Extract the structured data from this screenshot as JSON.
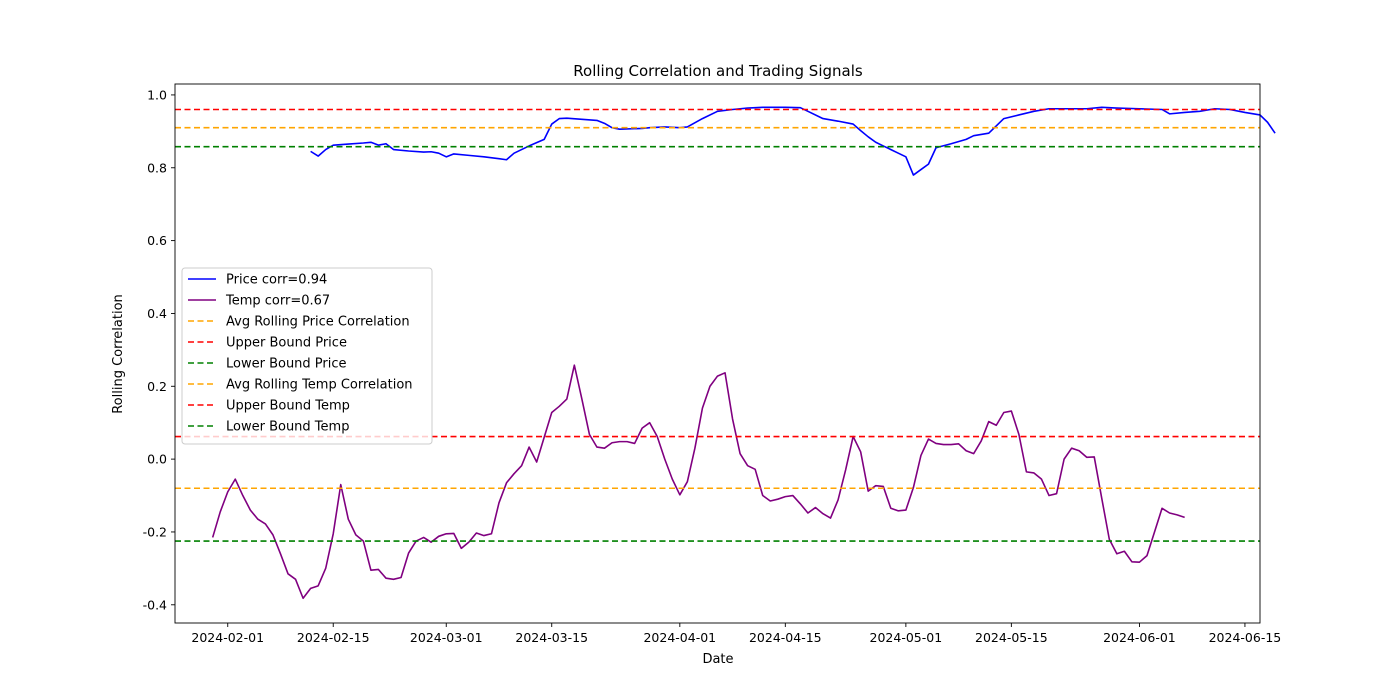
{
  "chart_data": {
    "type": "line",
    "title": "Rolling Correlation and Trading Signals",
    "xlabel": "Date",
    "ylabel": "Rolling Correlation",
    "xlim": [
      "2024-01-25",
      "2024-06-17"
    ],
    "ylim": [
      -0.45,
      1.03
    ],
    "x_ticks": [
      "2024-02-01",
      "2024-02-15",
      "2024-03-01",
      "2024-03-15",
      "2024-04-01",
      "2024-04-15",
      "2024-05-01",
      "2024-05-15",
      "2024-06-01",
      "2024-06-15"
    ],
    "y_ticks": [
      "-0.4",
      "-0.2",
      "0.0",
      "0.2",
      "0.4",
      "0.6",
      "0.8",
      "1.0"
    ],
    "grid": false,
    "legend_position": "center-left",
    "series": [
      {
        "name": "Price corr=0.94",
        "color": "#0000ff",
        "style": "solid",
        "points": [
          [
            "2024-02-12",
            0.845
          ],
          [
            "2024-02-13",
            0.832
          ],
          [
            "2024-02-14",
            0.85
          ],
          [
            "2024-02-15",
            0.862
          ],
          [
            "2024-02-17",
            0.865
          ],
          [
            "2024-02-19",
            0.868
          ],
          [
            "2024-02-20",
            0.87
          ],
          [
            "2024-02-21",
            0.862
          ],
          [
            "2024-02-22",
            0.866
          ],
          [
            "2024-02-23",
            0.85
          ],
          [
            "2024-02-25",
            0.846
          ],
          [
            "2024-02-27",
            0.843
          ],
          [
            "2024-02-28",
            0.844
          ],
          [
            "2024-02-29",
            0.84
          ],
          [
            "2024-03-01",
            0.83
          ],
          [
            "2024-03-02",
            0.838
          ],
          [
            "2024-03-04",
            0.834
          ],
          [
            "2024-03-06",
            0.83
          ],
          [
            "2024-03-08",
            0.825
          ],
          [
            "2024-03-09",
            0.822
          ],
          [
            "2024-03-10",
            0.84
          ],
          [
            "2024-03-12",
            0.86
          ],
          [
            "2024-03-14",
            0.878
          ],
          [
            "2024-03-15",
            0.92
          ],
          [
            "2024-03-16",
            0.935
          ],
          [
            "2024-03-17",
            0.936
          ],
          [
            "2024-03-21",
            0.93
          ],
          [
            "2024-03-22",
            0.922
          ],
          [
            "2024-03-23",
            0.91
          ],
          [
            "2024-03-24",
            0.906
          ],
          [
            "2024-03-27",
            0.908
          ],
          [
            "2024-03-28",
            0.91
          ],
          [
            "2024-03-30",
            0.912
          ],
          [
            "2024-04-01",
            0.91
          ],
          [
            "2024-04-02",
            0.912
          ],
          [
            "2024-04-04",
            0.935
          ],
          [
            "2024-04-06",
            0.955
          ],
          [
            "2024-04-08",
            0.96
          ],
          [
            "2024-04-10",
            0.964
          ],
          [
            "2024-04-12",
            0.966
          ],
          [
            "2024-04-15",
            0.966
          ],
          [
            "2024-04-17",
            0.965
          ],
          [
            "2024-04-18",
            0.955
          ],
          [
            "2024-04-20",
            0.935
          ],
          [
            "2024-04-22",
            0.928
          ],
          [
            "2024-04-24",
            0.92
          ],
          [
            "2024-04-25",
            0.902
          ],
          [
            "2024-04-26",
            0.885
          ],
          [
            "2024-04-27",
            0.87
          ],
          [
            "2024-04-28",
            0.86
          ],
          [
            "2024-04-30",
            0.84
          ],
          [
            "2024-05-01",
            0.83
          ],
          [
            "2024-05-02",
            0.78
          ],
          [
            "2024-05-03",
            0.795
          ],
          [
            "2024-05-04",
            0.81
          ],
          [
            "2024-05-05",
            0.855
          ],
          [
            "2024-05-07",
            0.866
          ],
          [
            "2024-05-09",
            0.878
          ],
          [
            "2024-05-10",
            0.888
          ],
          [
            "2024-05-12",
            0.895
          ],
          [
            "2024-05-14",
            0.935
          ],
          [
            "2024-05-16",
            0.945
          ],
          [
            "2024-05-18",
            0.955
          ],
          [
            "2024-05-20",
            0.962
          ],
          [
            "2024-05-23",
            0.962
          ],
          [
            "2024-05-25",
            0.962
          ],
          [
            "2024-05-27",
            0.966
          ],
          [
            "2024-05-29",
            0.964
          ],
          [
            "2024-06-01",
            0.962
          ],
          [
            "2024-06-04",
            0.96
          ],
          [
            "2024-06-05",
            0.948
          ],
          [
            "2024-06-07",
            0.952
          ],
          [
            "2024-06-09",
            0.955
          ],
          [
            "2024-06-11",
            0.962
          ],
          [
            "2024-06-13",
            0.96
          ],
          [
            "2024-06-15",
            0.952
          ],
          [
            "2024-06-17",
            0.945
          ],
          [
            "2024-06-18",
            0.925
          ],
          [
            "2024-06-19",
            0.895
          ]
        ]
      },
      {
        "name": "Temp corr=0.67",
        "color": "#800080",
        "style": "solid",
        "points": [
          [
            "2024-01-30",
            -0.215
          ],
          [
            "2024-01-31",
            -0.145
          ],
          [
            "2024-02-01",
            -0.09
          ],
          [
            "2024-02-02",
            -0.055
          ],
          [
            "2024-02-03",
            -0.1
          ],
          [
            "2024-02-04",
            -0.14
          ],
          [
            "2024-02-05",
            -0.165
          ],
          [
            "2024-02-06",
            -0.178
          ],
          [
            "2024-02-07",
            -0.208
          ],
          [
            "2024-02-08",
            -0.26
          ],
          [
            "2024-02-09",
            -0.315
          ],
          [
            "2024-02-10",
            -0.33
          ],
          [
            "2024-02-11",
            -0.382
          ],
          [
            "2024-02-12",
            -0.355
          ],
          [
            "2024-02-13",
            -0.348
          ],
          [
            "2024-02-14",
            -0.3
          ],
          [
            "2024-02-15",
            -0.205
          ],
          [
            "2024-02-16",
            -0.07
          ],
          [
            "2024-02-17",
            -0.165
          ],
          [
            "2024-02-18",
            -0.208
          ],
          [
            "2024-02-19",
            -0.225
          ],
          [
            "2024-02-20",
            -0.305
          ],
          [
            "2024-02-21",
            -0.303
          ],
          [
            "2024-02-22",
            -0.327
          ],
          [
            "2024-02-23",
            -0.33
          ],
          [
            "2024-02-24",
            -0.325
          ],
          [
            "2024-02-25",
            -0.258
          ],
          [
            "2024-02-26",
            -0.225
          ],
          [
            "2024-02-27",
            -0.215
          ],
          [
            "2024-02-28",
            -0.228
          ],
          [
            "2024-02-29",
            -0.212
          ],
          [
            "2024-03-01",
            -0.205
          ],
          [
            "2024-03-02",
            -0.204
          ],
          [
            "2024-03-03",
            -0.245
          ],
          [
            "2024-03-04",
            -0.228
          ],
          [
            "2024-03-05",
            -0.203
          ],
          [
            "2024-03-06",
            -0.21
          ],
          [
            "2024-03-07",
            -0.205
          ],
          [
            "2024-03-08",
            -0.12
          ],
          [
            "2024-03-09",
            -0.065
          ],
          [
            "2024-03-10",
            -0.04
          ],
          [
            "2024-03-11",
            -0.018
          ],
          [
            "2024-03-12",
            0.033
          ],
          [
            "2024-03-13",
            -0.008
          ],
          [
            "2024-03-14",
            0.06
          ],
          [
            "2024-03-15",
            0.128
          ],
          [
            "2024-03-16",
            0.145
          ],
          [
            "2024-03-17",
            0.165
          ],
          [
            "2024-03-18",
            0.258
          ],
          [
            "2024-03-19",
            0.165
          ],
          [
            "2024-03-20",
            0.068
          ],
          [
            "2024-03-21",
            0.033
          ],
          [
            "2024-03-22",
            0.03
          ],
          [
            "2024-03-23",
            0.045
          ],
          [
            "2024-03-24",
            0.048
          ],
          [
            "2024-03-25",
            0.048
          ],
          [
            "2024-03-26",
            0.043
          ],
          [
            "2024-03-27",
            0.085
          ],
          [
            "2024-03-28",
            0.1
          ],
          [
            "2024-03-29",
            0.062
          ],
          [
            "2024-03-30",
            0.0
          ],
          [
            "2024-03-31",
            -0.055
          ],
          [
            "2024-04-01",
            -0.098
          ],
          [
            "2024-04-02",
            -0.062
          ],
          [
            "2024-04-03",
            0.03
          ],
          [
            "2024-04-04",
            0.14
          ],
          [
            "2024-04-05",
            0.2
          ],
          [
            "2024-04-06",
            0.228
          ],
          [
            "2024-04-07",
            0.237
          ],
          [
            "2024-04-08",
            0.11
          ],
          [
            "2024-04-09",
            0.015
          ],
          [
            "2024-04-10",
            -0.018
          ],
          [
            "2024-04-11",
            -0.028
          ],
          [
            "2024-04-12",
            -0.1
          ],
          [
            "2024-04-13",
            -0.115
          ],
          [
            "2024-04-14",
            -0.11
          ],
          [
            "2024-04-15",
            -0.103
          ],
          [
            "2024-04-16",
            -0.1
          ],
          [
            "2024-04-17",
            -0.123
          ],
          [
            "2024-04-18",
            -0.148
          ],
          [
            "2024-04-19",
            -0.133
          ],
          [
            "2024-04-20",
            -0.15
          ],
          [
            "2024-04-21",
            -0.162
          ],
          [
            "2024-04-22",
            -0.112
          ],
          [
            "2024-04-23",
            -0.03
          ],
          [
            "2024-04-24",
            0.062
          ],
          [
            "2024-04-25",
            0.02
          ],
          [
            "2024-04-26",
            -0.088
          ],
          [
            "2024-04-27",
            -0.073
          ],
          [
            "2024-04-28",
            -0.075
          ],
          [
            "2024-04-29",
            -0.135
          ],
          [
            "2024-04-30",
            -0.142
          ],
          [
            "2024-05-01",
            -0.14
          ],
          [
            "2024-05-02",
            -0.078
          ],
          [
            "2024-05-03",
            0.01
          ],
          [
            "2024-05-04",
            0.055
          ],
          [
            "2024-05-05",
            0.043
          ],
          [
            "2024-05-06",
            0.04
          ],
          [
            "2024-05-07",
            0.04
          ],
          [
            "2024-05-08",
            0.042
          ],
          [
            "2024-05-09",
            0.023
          ],
          [
            "2024-05-10",
            0.015
          ],
          [
            "2024-05-11",
            0.05
          ],
          [
            "2024-05-12",
            0.103
          ],
          [
            "2024-05-13",
            0.093
          ],
          [
            "2024-05-14",
            0.128
          ],
          [
            "2024-05-15",
            0.132
          ],
          [
            "2024-05-16",
            0.068
          ],
          [
            "2024-05-17",
            -0.035
          ],
          [
            "2024-05-18",
            -0.038
          ],
          [
            "2024-05-19",
            -0.055
          ],
          [
            "2024-05-20",
            -0.1
          ],
          [
            "2024-05-21",
            -0.095
          ],
          [
            "2024-05-22",
            0.0
          ],
          [
            "2024-05-23",
            0.03
          ],
          [
            "2024-05-24",
            0.023
          ],
          [
            "2024-05-25",
            0.005
          ],
          [
            "2024-05-26",
            0.006
          ],
          [
            "2024-05-27",
            -0.108
          ],
          [
            "2024-05-28",
            -0.22
          ],
          [
            "2024-05-29",
            -0.26
          ],
          [
            "2024-05-30",
            -0.253
          ],
          [
            "2024-05-31",
            -0.282
          ],
          [
            "2024-06-01",
            -0.283
          ],
          [
            "2024-06-02",
            -0.265
          ],
          [
            "2024-06-03",
            -0.2
          ],
          [
            "2024-06-04",
            -0.135
          ],
          [
            "2024-06-05",
            -0.148
          ],
          [
            "2024-06-06",
            -0.153
          ],
          [
            "2024-06-07",
            -0.16
          ]
        ]
      },
      {
        "name": "Avg Rolling Price Correlation",
        "color": "#ffa500",
        "style": "dashed",
        "hline": 0.91
      },
      {
        "name": "Upper Bound Price",
        "color": "#ff0000",
        "style": "dashed",
        "hline": 0.96
      },
      {
        "name": "Lower Bound Price",
        "color": "#008000",
        "style": "dashed",
        "hline": 0.858
      },
      {
        "name": "Avg Rolling Temp Correlation",
        "color": "#ffa500",
        "style": "dashed",
        "hline": -0.08
      },
      {
        "name": "Upper Bound Temp",
        "color": "#ff0000",
        "style": "dashed",
        "hline": 0.062
      },
      {
        "name": "Lower Bound Temp",
        "color": "#008000",
        "style": "dashed",
        "hline": -0.225
      }
    ]
  }
}
